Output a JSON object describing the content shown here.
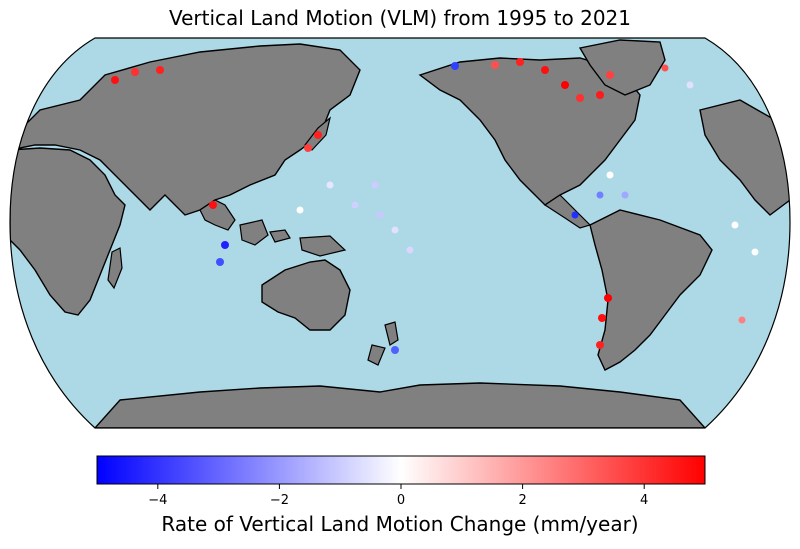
{
  "title": "Vertical Land Motion (VLM) from 1995 to 2021",
  "colorbar": {
    "label": "Rate of Vertical Land Motion Change (mm/year)",
    "min": -5,
    "max": 5,
    "ticks": [
      -4,
      -2,
      0,
      2,
      4
    ],
    "tick_labels": [
      "−4",
      "−2",
      "0",
      "2",
      "4"
    ],
    "colormap": "bwr",
    "colors": {
      "low": "#0000ff",
      "mid": "#ffffff",
      "high": "#ff0000"
    }
  },
  "map": {
    "projection": "Robinson",
    "central_longitude": 180,
    "ocean_color": "#add8e6",
    "land_color": "#808080",
    "coastline_color": "#000000"
  }
}
